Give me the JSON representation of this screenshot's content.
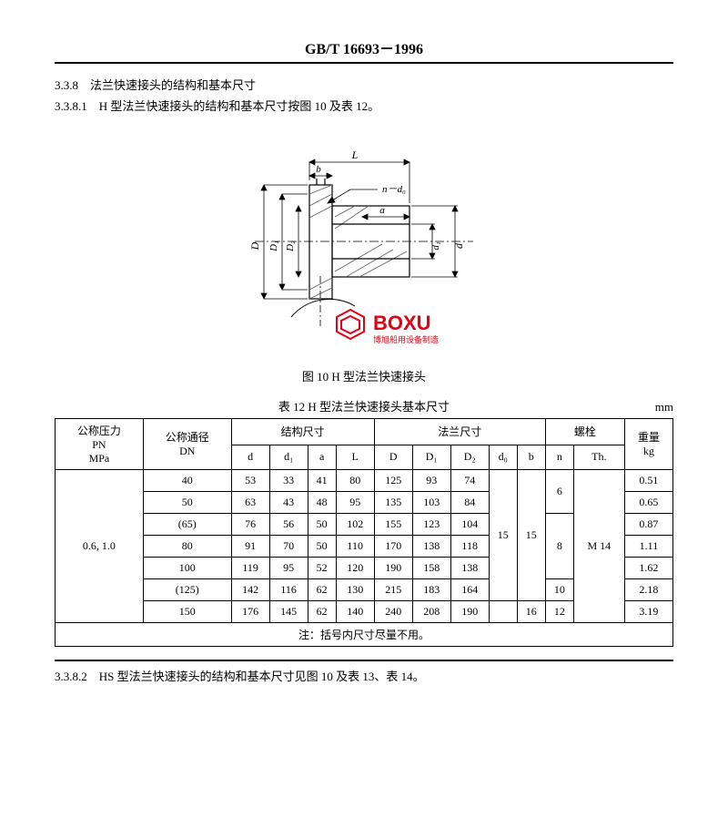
{
  "header": {
    "standard": "GB/T 16693－1996"
  },
  "sections": {
    "s1_num": "3.3.8",
    "s1_text": "法兰快速接头的结构和基本尺寸",
    "s2_num": "3.3.8.1",
    "s2_text": "H 型法兰快速接头的结构和基本尺寸按图 10 及表 12。",
    "s3_num": "3.3.8.2",
    "s3_text": "HS 型法兰快速接头的结构和基本尺寸见图 10 及表 13、表 14。"
  },
  "diagram": {
    "labels": {
      "L": "L",
      "b": "b",
      "a": "a",
      "n_d0": "n－d₀",
      "D": "D",
      "D1": "D₁",
      "D2": "D₂",
      "d1": "d₁",
      "d": "d"
    },
    "watermark_logo": "BOXU",
    "watermark_sub": "博旭船用设备制造",
    "colors": {
      "line": "#000000",
      "hatch": "#606060",
      "logo": "#e60012"
    }
  },
  "figure": {
    "caption": "图 10  H 型法兰快速接头"
  },
  "table": {
    "caption": "表 12  H 型法兰快速接头基本尺寸",
    "unit": "mm",
    "head": {
      "c1": "公称压力\nPN\nMPa",
      "c2": "公称通径\nDN",
      "g1": "结构尺寸",
      "g2": "法兰尺寸",
      "g3": "螺栓",
      "c_wt": "重量\nkg",
      "s_d": "d",
      "s_d1": "d₁",
      "s_a": "a",
      "s_L": "L",
      "s_D": "D",
      "s_D1": "D₁",
      "s_D2": "D₂",
      "s_d0": "d₀",
      "s_b": "b",
      "s_n": "n",
      "s_Th": "Th."
    },
    "pn_value": "0.6, 1.0",
    "rows": [
      {
        "dn": "40",
        "d": "53",
        "d1": "33",
        "a": "41",
        "L": "80",
        "D": "125",
        "D1": "93",
        "D2": "74",
        "wt": "0.51"
      },
      {
        "dn": "50",
        "d": "63",
        "d1": "43",
        "a": "48",
        "L": "95",
        "D": "135",
        "D1": "103",
        "D2": "84",
        "wt": "0.65"
      },
      {
        "dn": "(65)",
        "d": "76",
        "d1": "56",
        "a": "50",
        "L": "102",
        "D": "155",
        "D1": "123",
        "D2": "104",
        "wt": "0.87"
      },
      {
        "dn": "80",
        "d": "91",
        "d1": "70",
        "a": "50",
        "L": "110",
        "D": "170",
        "D1": "138",
        "D2": "118",
        "wt": "1.11"
      },
      {
        "dn": "100",
        "d": "119",
        "d1": "95",
        "a": "52",
        "L": "120",
        "D": "190",
        "D1": "158",
        "D2": "138",
        "wt": "1.62"
      },
      {
        "dn": "(125)",
        "d": "142",
        "d1": "116",
        "a": "62",
        "L": "130",
        "D": "215",
        "D1": "183",
        "D2": "164",
        "wt": "2.18"
      },
      {
        "dn": "150",
        "d": "176",
        "d1": "145",
        "a": "62",
        "L": "140",
        "D": "240",
        "D1": "208",
        "D2": "190",
        "wt": "3.19"
      }
    ],
    "d0_1": "15",
    "b_1": "15",
    "n_1": "6",
    "n_2": "8",
    "n_3": "10",
    "n_4": "12",
    "b_2": "16",
    "th_all": "M 14",
    "note": "注：括号内尺寸尽量不用。"
  }
}
